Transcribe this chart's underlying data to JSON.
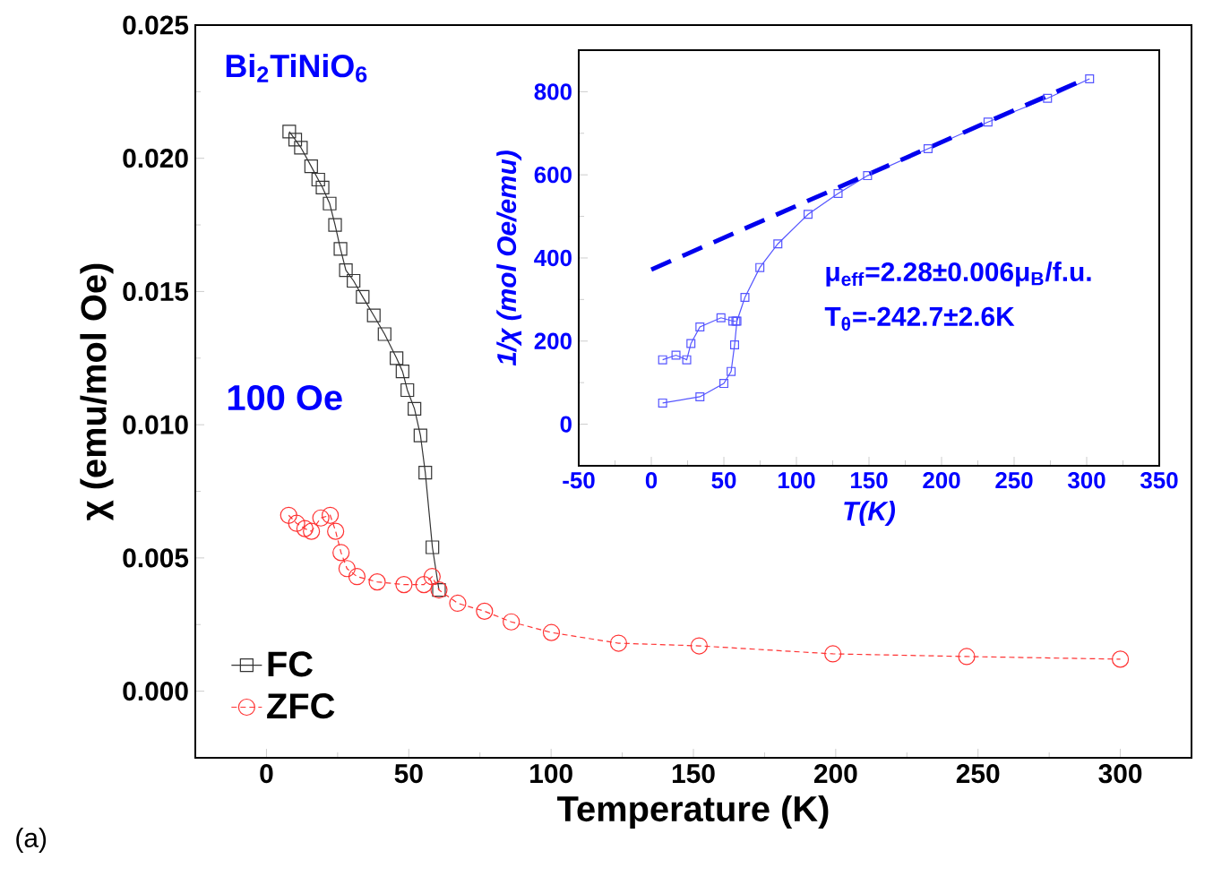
{
  "chart_data": [
    {
      "type": "line",
      "xlabel": "Temperature (K)",
      "ylabel": "χ (emu/mol Oe)",
      "xlim": [
        -25,
        325
      ],
      "ylim": [
        -0.0025,
        0.025
      ],
      "xticks": [
        0,
        50,
        100,
        150,
        200,
        250,
        300
      ],
      "yticks": [
        {
          "value": 0,
          "label": "0.000"
        },
        {
          "value": 0.005,
          "label": "0.005"
        },
        {
          "value": 0.01,
          "label": "0.010"
        },
        {
          "value": 0.015,
          "label": "0.015"
        },
        {
          "value": 0.02,
          "label": "0.020"
        },
        {
          "value": 0.025,
          "label": "0.025"
        }
      ],
      "legend": "bottom left",
      "grid": false,
      "annotations": [
        "Bi$_{2}$TiNiO$_{6}$",
        "100 Oe",
        "(a)"
      ],
      "series": [
        {
          "name": "FC",
          "color": "#333333",
          "marker": "square",
          "line_style": "solid",
          "x": [
            8.0,
            10.1,
            12.1,
            15.7,
            18.2,
            19.7,
            22.2,
            24.1,
            26.0,
            27.9,
            30.6,
            33.8,
            37.7,
            41.5,
            45.7,
            47.8,
            49.5,
            52.0,
            54.1,
            55.8,
            58.3,
            60.6
          ],
          "values": [
            0.021,
            0.0207,
            0.0204,
            0.0197,
            0.0192,
            0.0189,
            0.0183,
            0.0175,
            0.0166,
            0.0158,
            0.0154,
            0.0148,
            0.0141,
            0.0134,
            0.0125,
            0.012,
            0.0113,
            0.0106,
            0.0096,
            0.0082,
            0.0054,
            0.0038
          ]
        },
        {
          "name": "ZFC",
          "color": "#ff3333",
          "marker": "circle",
          "line_style": "dashed",
          "x": [
            7.8,
            10.6,
            13.5,
            15.8,
            19.1,
            22.4,
            24.3,
            26.2,
            28.3,
            31.8,
            38.9,
            48.3,
            55.3,
            58.2,
            60.6,
            67.2,
            76.6,
            86.0,
            100.1,
            123.7,
            152,
            199,
            246,
            300
          ],
          "values": [
            0.0066,
            0.0063,
            0.0061,
            0.006,
            0.0065,
            0.0066,
            0.006,
            0.0052,
            0.0046,
            0.0043,
            0.0041,
            0.004,
            0.004,
            0.0043,
            0.0038,
            0.0033,
            0.003,
            0.0026,
            0.0022,
            0.0018,
            0.0017,
            0.0014,
            0.0013,
            0.0012
          ]
        }
      ]
    },
    {
      "type": "scatter",
      "xlabel": "T(K)",
      "ylabel": "1/χ (mol Oe/emu)",
      "xlim": [
        -50,
        350
      ],
      "ylim": [
        -100,
        900
      ],
      "xticks": [
        -50,
        0,
        50,
        100,
        150,
        200,
        250,
        300,
        350
      ],
      "yticks": [
        0,
        200,
        400,
        600,
        800
      ],
      "grid": false,
      "annotations": [
        "μ$_{eff}$=2.28±0.006μ$_{B}$/f.u.",
        "T$_{θ}$=-242.7±2.6K"
      ],
      "series": [
        {
          "type": "line",
          "color": "#5555ff",
          "marker": "square",
          "line_style": "solid",
          "x": [
            7.8,
            33.5,
            50,
            55,
            57.4,
            59,
            64.5,
            74.8,
            87.2,
            108,
            128.7,
            149,
            190.7,
            232,
            273,
            302
          ],
          "values": [
            51,
            66,
            98,
            127,
            191,
            248,
            305,
            377,
            434,
            505,
            555,
            598,
            663,
            727,
            784,
            831
          ]
        },
        {
          "type": "line",
          "color": "#5555ff",
          "marker": "square",
          "line_style": "solid",
          "x": [
            7.8,
            17,
            24.4,
            27.3,
            33.5,
            48,
            56.2,
            58.3
          ],
          "values": [
            155,
            166,
            155,
            194,
            234,
            256,
            248,
            248
          ]
        },
        {
          "type": "line",
          "color": "#0000ee",
          "marker": "none",
          "line_style": "dashed",
          "x": [
            0,
            300
          ],
          "values": [
            372,
            832
          ]
        }
      ]
    }
  ]
}
